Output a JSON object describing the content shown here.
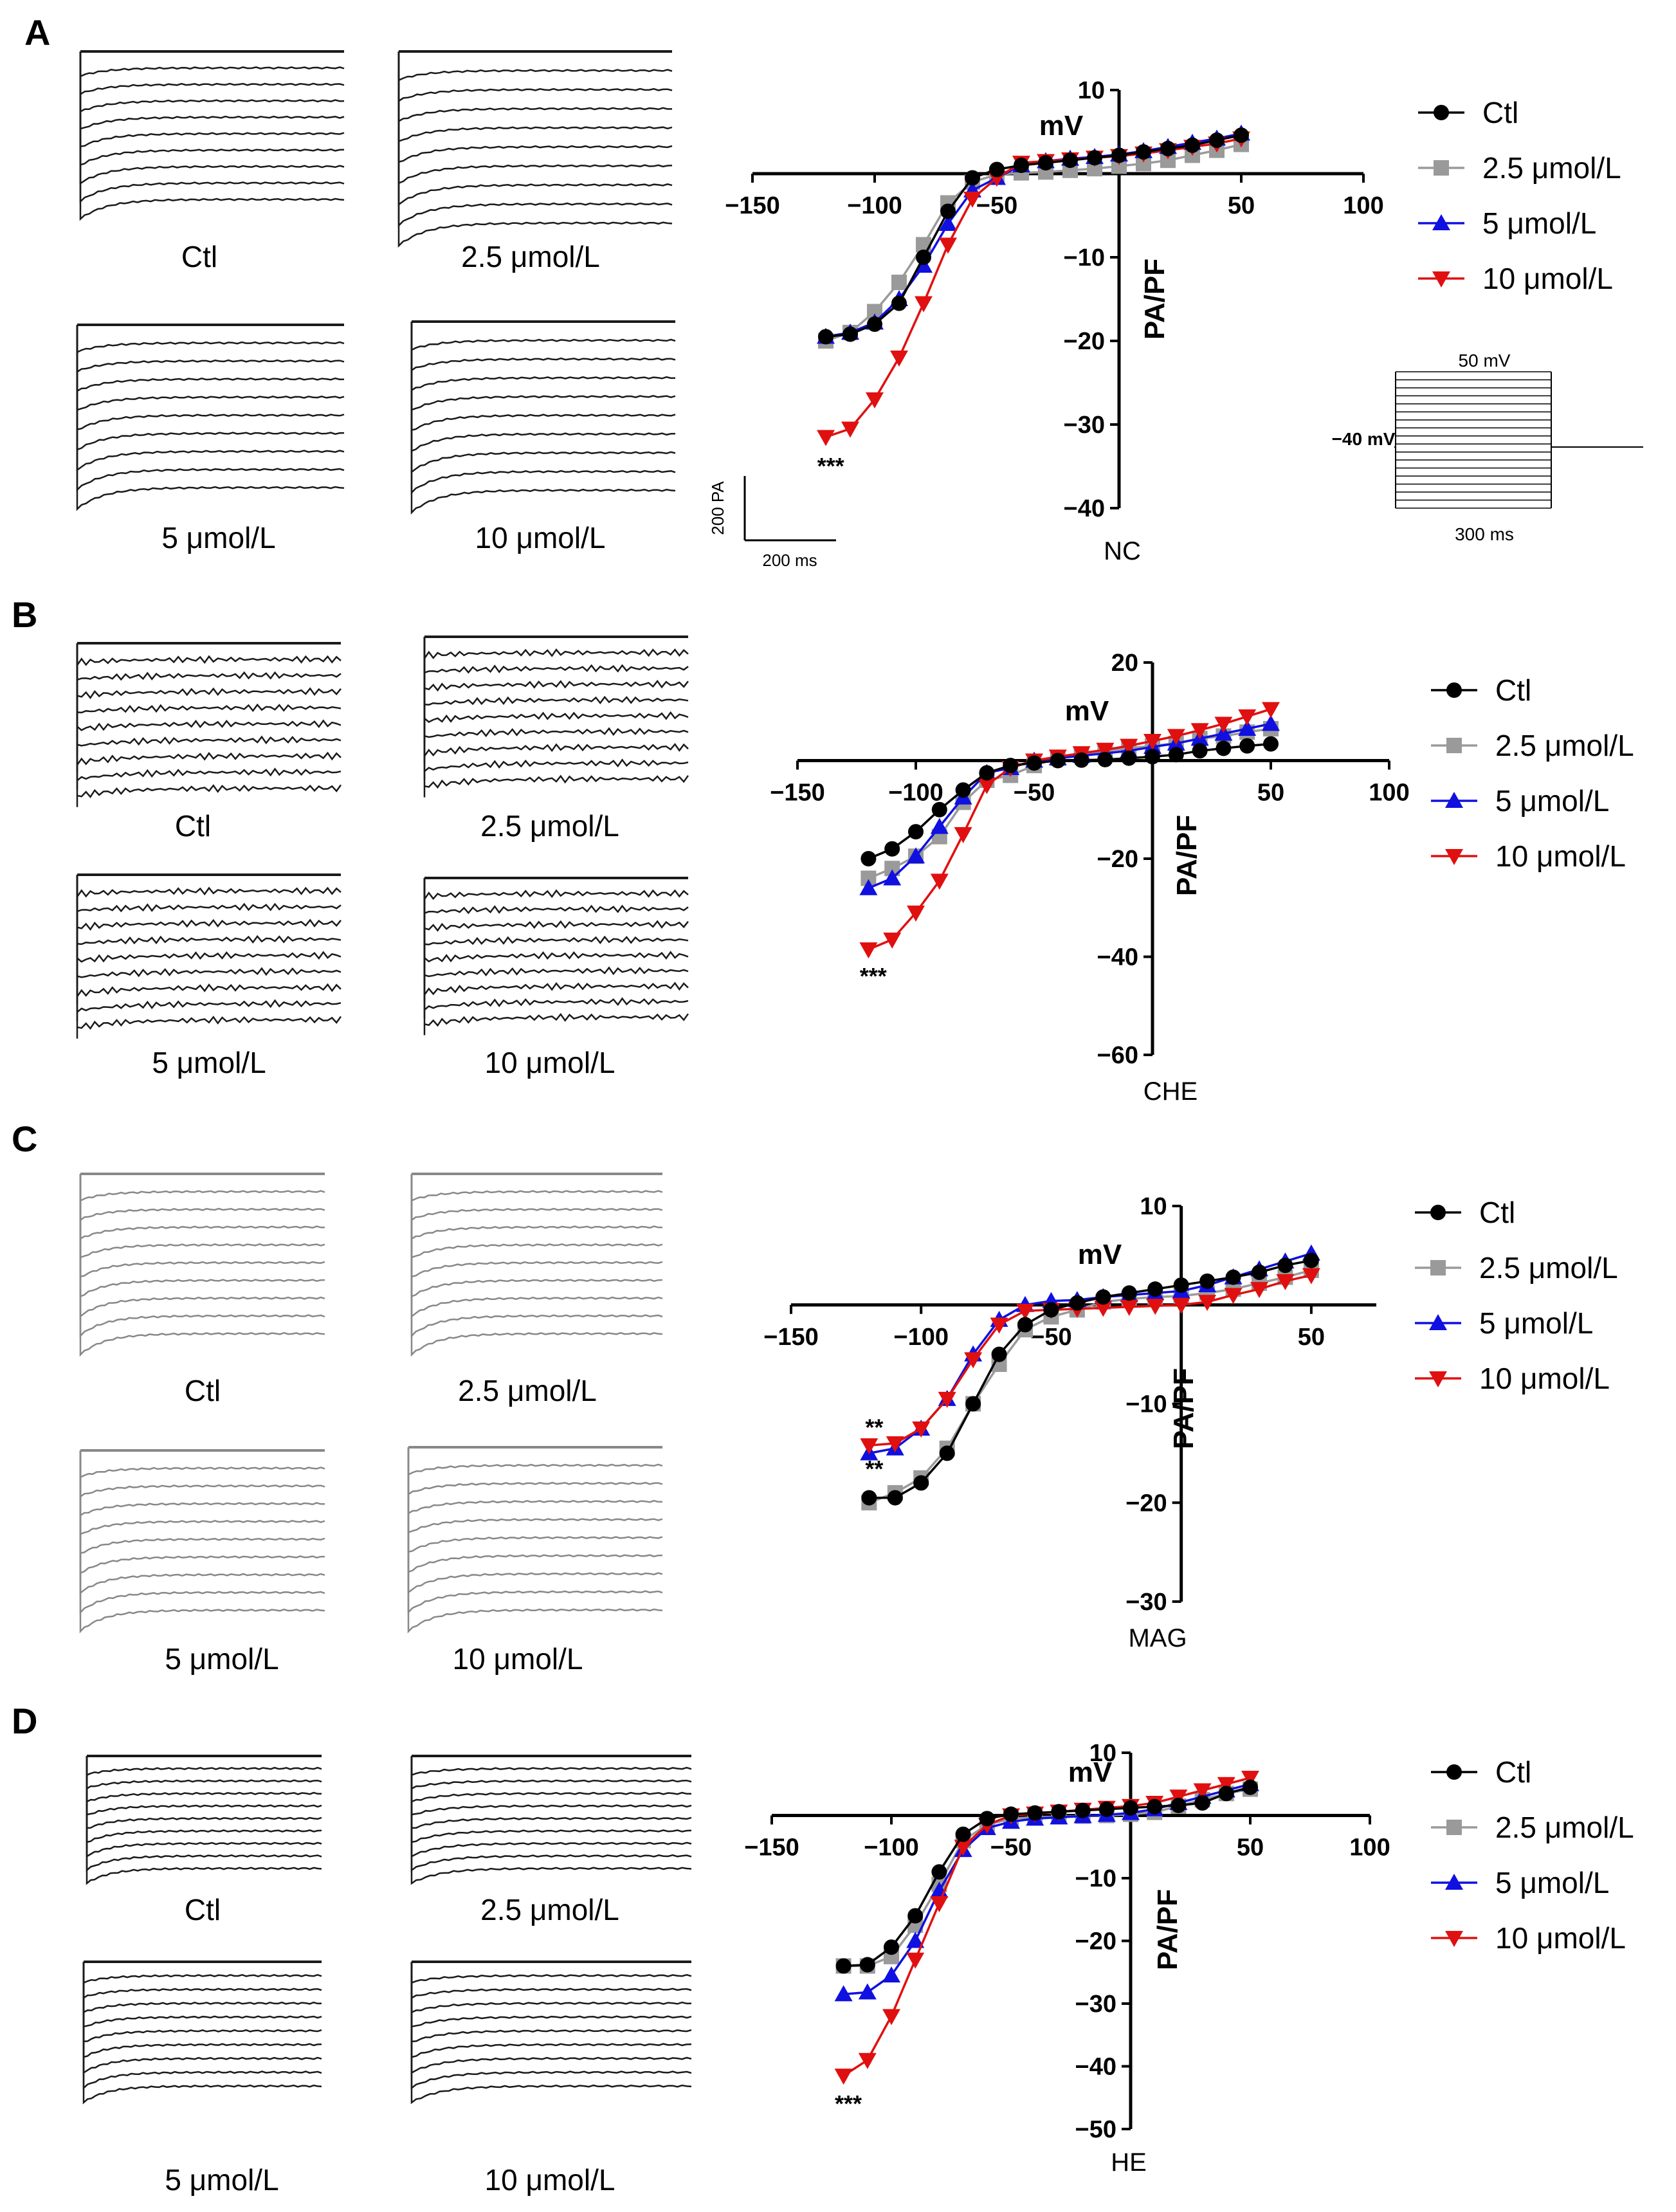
{
  "panels": [
    {
      "letter": "A",
      "trace_labels": [
        "Ctl",
        "2.5 μmol/L",
        "5 μmol/L",
        "10 μmol/L"
      ],
      "scale_bar": {
        "vertical": "200 PA",
        "horizontal": "200 ms"
      },
      "protocol": {
        "top": "50 mV",
        "left": "−40 mV",
        "bottom": "300 ms"
      }
    },
    {
      "letter": "B",
      "trace_labels": [
        "Ctl",
        "2.5 μmol/L",
        "5 μmol/L",
        "10 μmol/L"
      ]
    },
    {
      "letter": "C",
      "trace_labels": [
        "Ctl",
        "2.5 μmol/L",
        "5 μmol/L",
        "10 μmol/L"
      ]
    },
    {
      "letter": "D",
      "trace_labels": [
        "Ctl",
        "2.5 μmol/L",
        "5 μmol/L",
        "10 μmol/L"
      ]
    }
  ],
  "colors": {
    "ctl": "#000000",
    "c25": "#9a9a9a",
    "c5": "#1010e0",
    "c10": "#e01010"
  },
  "chart_data": [
    {
      "type": "line",
      "caption": "NC",
      "xlabel": "mV",
      "ylabel": "PA/PF",
      "xlim": [
        -150,
        100
      ],
      "ylim": [
        -40,
        10
      ],
      "xticks": [
        -150,
        -100,
        -50,
        50,
        100
      ],
      "yticks": [
        -40,
        -30,
        -20,
        -10,
        10
      ],
      "x": [
        -120,
        -110,
        -100,
        -90,
        -80,
        -70,
        -60,
        -50,
        -40,
        -30,
        -20,
        -10,
        0,
        10,
        20,
        30,
        40,
        50
      ],
      "series": [
        {
          "name": "Ctl",
          "marker": "circle",
          "values": [
            -19.5,
            -19.2,
            -18,
            -15.5,
            -10,
            -4.5,
            -0.5,
            0.5,
            1,
            1.3,
            1.6,
            1.9,
            2.2,
            2.6,
            3,
            3.4,
            4,
            4.6
          ]
        },
        {
          "name": "2.5 μmol/L",
          "marker": "square",
          "values": [
            -20,
            -19,
            -16.5,
            -13,
            -8.5,
            -3.5,
            -1,
            -0.1,
            0.1,
            0.2,
            0.4,
            0.6,
            0.9,
            1.2,
            1.6,
            2.2,
            2.8,
            3.5
          ]
        },
        {
          "name": "5 μmol/L",
          "marker": "triangle-up",
          "values": [
            -19.5,
            -19,
            -17.8,
            -15,
            -11,
            -6,
            -2,
            -0.5,
            1,
            1.5,
            1.8,
            2,
            2.3,
            2.7,
            3.2,
            3.7,
            4.2,
            4.8
          ]
        },
        {
          "name": "10 μmol/L",
          "marker": "triangle-down",
          "values": [
            -31.5,
            -30.5,
            -27,
            -22,
            -15.5,
            -8.5,
            -3,
            -0.5,
            1.3,
            1.5,
            1.7,
            1.9,
            2.1,
            2.4,
            2.8,
            3.2,
            3.6,
            4.2
          ]
        }
      ],
      "annotations": [
        {
          "text": "***",
          "x": -118,
          "y": -35
        }
      ]
    },
    {
      "type": "line",
      "caption": "CHE",
      "xlabel": "mV",
      "ylabel": "PA/PF",
      "xlim": [
        -150,
        100
      ],
      "ylim": [
        -60,
        20
      ],
      "xticks": [
        -150,
        -100,
        -50,
        50,
        100
      ],
      "yticks": [
        -60,
        -40,
        -20,
        20
      ],
      "x": [
        -120,
        -110,
        -100,
        -90,
        -80,
        -70,
        -60,
        -50,
        -40,
        -30,
        -20,
        -10,
        0,
        10,
        20,
        30,
        40,
        50
      ],
      "series": [
        {
          "name": "Ctl",
          "marker": "circle",
          "values": [
            -20,
            -18,
            -14.5,
            -10,
            -6,
            -2.5,
            -1,
            -0.5,
            0,
            0.1,
            0.2,
            0.5,
            0.8,
            1.2,
            2,
            2.5,
            3,
            3.4
          ]
        },
        {
          "name": "2.5 μmol/L",
          "marker": "square",
          "values": [
            -24,
            -22,
            -19.5,
            -15.5,
            -8.5,
            -4,
            -3,
            -1,
            0.5,
            1.2,
            2,
            2.5,
            3,
            3.5,
            4.5,
            5,
            5.8,
            6.5
          ]
        },
        {
          "name": "5 μmol/L",
          "marker": "triangle-up",
          "values": [
            -26,
            -24,
            -19.5,
            -13.5,
            -7.5,
            -2.5,
            -1.5,
            0,
            0.5,
            1,
            1.5,
            2,
            2.8,
            3.5,
            4.5,
            5.5,
            6.5,
            7.5
          ]
        },
        {
          "name": "10 μmol/L",
          "marker": "triangle-down",
          "values": [
            -38.5,
            -36.5,
            -31,
            -24.5,
            -15,
            -5,
            -1.5,
            0,
            0.8,
            1.5,
            2.2,
            3,
            4,
            5,
            6.2,
            7.5,
            9,
            10.5
          ]
        }
      ],
      "annotations": [
        {
          "text": "***",
          "x": -118,
          "y": -44
        }
      ]
    },
    {
      "type": "line",
      "caption": "MAG",
      "xlabel": "mV",
      "ylabel": "PA/PF",
      "xlim": [
        -150,
        75
      ],
      "ylim": [
        -30,
        10
      ],
      "xticks": [
        -150,
        -100,
        -50,
        50
      ],
      "yticks": [
        -30,
        -20,
        -10,
        10
      ],
      "x": [
        -120,
        -110,
        -100,
        -90,
        -80,
        -70,
        -60,
        -50,
        -40,
        -30,
        -20,
        -10,
        0,
        10,
        20,
        30,
        40,
        50
      ],
      "series": [
        {
          "name": "Ctl",
          "marker": "circle",
          "values": [
            -19.5,
            -19.5,
            -18,
            -15,
            -10,
            -5,
            -2,
            -0.5,
            0.2,
            0.8,
            1.2,
            1.6,
            2,
            2.4,
            2.8,
            3.3,
            4,
            4.5
          ]
        },
        {
          "name": "2.5 μmol/L",
          "marker": "square",
          "values": [
            -20,
            -19,
            -17.5,
            -14.5,
            -10,
            -6,
            -2.5,
            -1.2,
            -0.5,
            0.3,
            0.6,
            0.8,
            0.9,
            1.2,
            1.6,
            2.2,
            2.8,
            3.5
          ]
        },
        {
          "name": "5 μmol/L",
          "marker": "triangle-up",
          "values": [
            -15,
            -14.5,
            -12.5,
            -9.5,
            -5,
            -1.5,
            0,
            0.4,
            0.5,
            0.8,
            1,
            1.2,
            1.4,
            2,
            2.8,
            3.6,
            4.4,
            5.2
          ]
        },
        {
          "name": "10 μmol/L",
          "marker": "triangle-down",
          "values": [
            -14.2,
            -14,
            -12.5,
            -9.5,
            -5.5,
            -2,
            -0.6,
            -0.5,
            -0.4,
            -0.3,
            -0.2,
            -0.1,
            0,
            0.3,
            1,
            1.6,
            2.4,
            3
          ]
        }
      ],
      "annotations": [
        {
          "text": "**",
          "x": -118,
          "y": -12.4
        },
        {
          "text": "**",
          "x": -118,
          "y": -16.6
        }
      ]
    },
    {
      "type": "line",
      "caption": "HE",
      "xlabel": "mV",
      "ylabel": "PA/PF",
      "xlim": [
        -150,
        100
      ],
      "ylim": [
        -50,
        10
      ],
      "xticks": [
        -150,
        -100,
        -50,
        50,
        100
      ],
      "yticks": [
        -50,
        -40,
        -30,
        -20,
        -10,
        10
      ],
      "x": [
        -120,
        -110,
        -100,
        -90,
        -80,
        -70,
        -60,
        -50,
        -40,
        -30,
        -20,
        -10,
        0,
        10,
        20,
        30,
        40,
        50
      ],
      "series": [
        {
          "name": "Ctl",
          "marker": "circle",
          "values": [
            -24,
            -23.8,
            -21,
            -16,
            -9,
            -3,
            -0.5,
            0.2,
            0.4,
            0.6,
            0.8,
            1,
            1.2,
            1.4,
            1.6,
            2,
            3.5,
            4.5
          ]
        },
        {
          "name": "2.5 μmol/L",
          "marker": "square",
          "values": [
            -24,
            -24,
            -22.5,
            -17.5,
            -11,
            -4,
            -1.5,
            -0.5,
            -0.3,
            -0.2,
            -0.1,
            0,
            0.2,
            0.5,
            1.5,
            2.5,
            3.5,
            4.2
          ]
        },
        {
          "name": "5 μmol/L",
          "marker": "triangle-up",
          "values": [
            -28.5,
            -28.2,
            -25.5,
            -20,
            -12,
            -5.5,
            -2,
            -1,
            -0.5,
            -0.3,
            -0.1,
            0.1,
            0.4,
            1,
            2,
            3,
            4,
            5
          ]
        },
        {
          "name": "10 μmol/L",
          "marker": "triangle-down",
          "values": [
            -41.5,
            -39,
            -32,
            -23,
            -14,
            -5,
            -1.5,
            0,
            0.3,
            0.6,
            0.9,
            1.2,
            1.5,
            2,
            3,
            4,
            5,
            6
          ]
        }
      ],
      "annotations": [
        {
          "text": "***",
          "x": -118,
          "y": -46
        }
      ]
    }
  ]
}
